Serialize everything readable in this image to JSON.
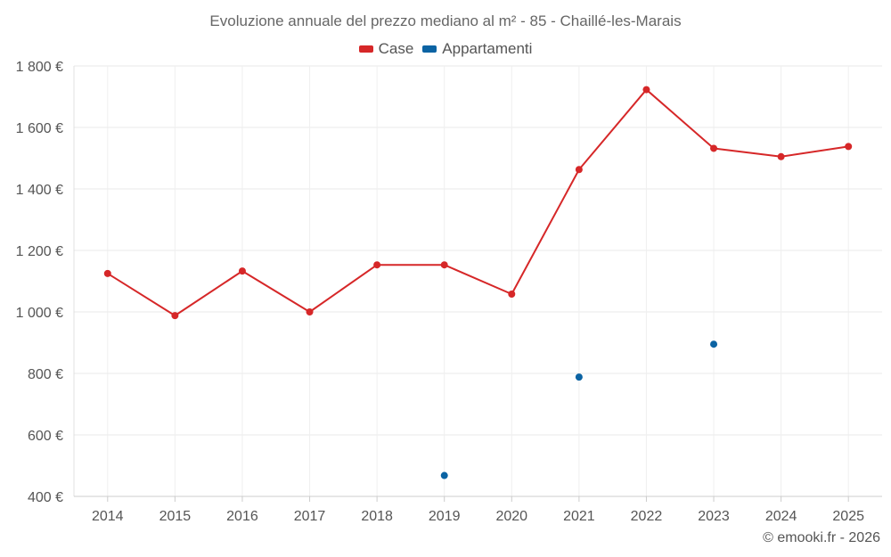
{
  "chart_data": {
    "type": "line",
    "title": "Evoluzione annuale del prezzo mediano al m² - 85 - Chaillé-les-Marais",
    "categories": [
      "2014",
      "2015",
      "2016",
      "2017",
      "2018",
      "2019",
      "2020",
      "2021",
      "2022",
      "2023",
      "2024",
      "2025"
    ],
    "series": [
      {
        "name": "Case",
        "color": "#d62728",
        "values": [
          1125,
          988,
          1133,
          1000,
          1153,
          1153,
          1058,
          1463,
          1723,
          1532,
          1505,
          1538
        ]
      },
      {
        "name": "Appartamenti",
        "color": "#0b63a3",
        "values": [
          null,
          null,
          null,
          null,
          null,
          468,
          null,
          788,
          null,
          895,
          null,
          null
        ]
      }
    ],
    "ylim": [
      400,
      1800
    ],
    "yticks": [
      400,
      600,
      800,
      1000,
      1200,
      1400,
      1600,
      1800
    ],
    "ytick_labels": [
      "400 €",
      "600 €",
      "800 €",
      "1 000 €",
      "1 200 €",
      "1 400 €",
      "1 600 €",
      "1 800 €"
    ],
    "xlabel": "",
    "ylabel": "",
    "grid": true,
    "legend_position": "top-center"
  },
  "credit": "© emooki.fr - 2026"
}
